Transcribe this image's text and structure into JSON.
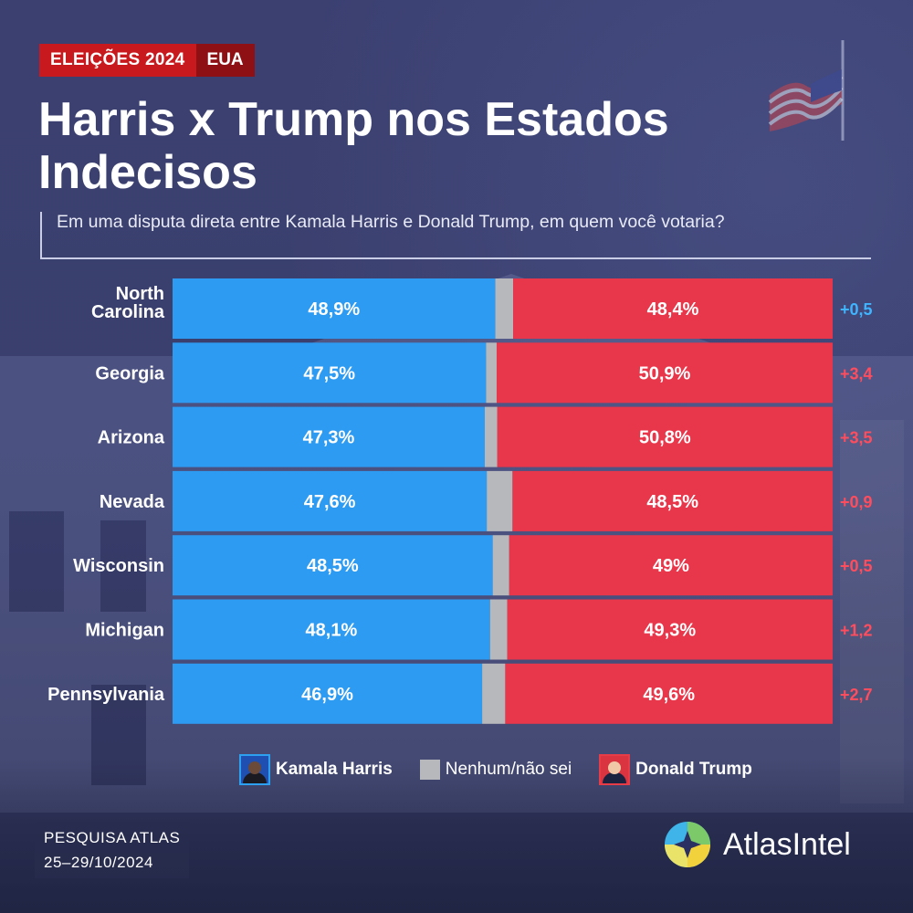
{
  "header": {
    "tag_main": "ELEIÇÕES 2024",
    "tag_sub": "EUA",
    "title": "Harris x Trump nos Estados Indecisos",
    "subtitle": "Em uma disputa direta entre Kamala Harris e Donald Trump, em quem você votaria?"
  },
  "colors": {
    "harris": "#2e9bf2",
    "none": "#b6b8bc",
    "trump": "#e8364a",
    "lead_harris": "#3fb4ff",
    "lead_trump": "#ff4d5e",
    "background": "#3a3f6e"
  },
  "chart_data": {
    "type": "bar",
    "orientation": "horizontal-stacked",
    "title": "Harris x Trump nos Estados Indecisos",
    "categories": [
      "North Carolina",
      "Georgia",
      "Arizona",
      "Nevada",
      "Wisconsin",
      "Michigan",
      "Pennsylvania"
    ],
    "series": [
      {
        "name": "Kamala Harris",
        "values": [
          48.9,
          47.5,
          47.3,
          47.6,
          48.5,
          48.1,
          46.9
        ],
        "labels": [
          "48,9%",
          "47,5%",
          "47,3%",
          "47,6%",
          "48,5%",
          "48,1%",
          "46,9%"
        ]
      },
      {
        "name": "Nenhum/não sei",
        "values": [
          2.7,
          1.6,
          1.9,
          3.9,
          2.5,
          2.6,
          3.5
        ]
      },
      {
        "name": "Donald Trump",
        "values": [
          48.4,
          50.9,
          50.8,
          48.5,
          49.0,
          49.3,
          49.6
        ],
        "labels": [
          "48,4%",
          "50,9%",
          "50,8%",
          "48,5%",
          "49%",
          "49,3%",
          "49,6%"
        ]
      }
    ],
    "leads": [
      {
        "label": "+0,5",
        "leader": "harris"
      },
      {
        "label": "+3,4",
        "leader": "trump"
      },
      {
        "label": "+3,5",
        "leader": "trump"
      },
      {
        "label": "+0,9",
        "leader": "trump"
      },
      {
        "label": "+0,5",
        "leader": "trump"
      },
      {
        "label": "+1,2",
        "leader": "trump"
      },
      {
        "label": "+2,7",
        "leader": "trump"
      }
    ],
    "xlim": [
      0,
      100
    ],
    "unit": "%"
  },
  "legend": {
    "harris": "Kamala Harris",
    "none": "Nenhum/não sei",
    "trump": "Donald Trump"
  },
  "footer": {
    "source_line1": "PESQUISA ATLAS",
    "source_line2": "25–29/10/2024",
    "brand": "AtlasIntel"
  }
}
